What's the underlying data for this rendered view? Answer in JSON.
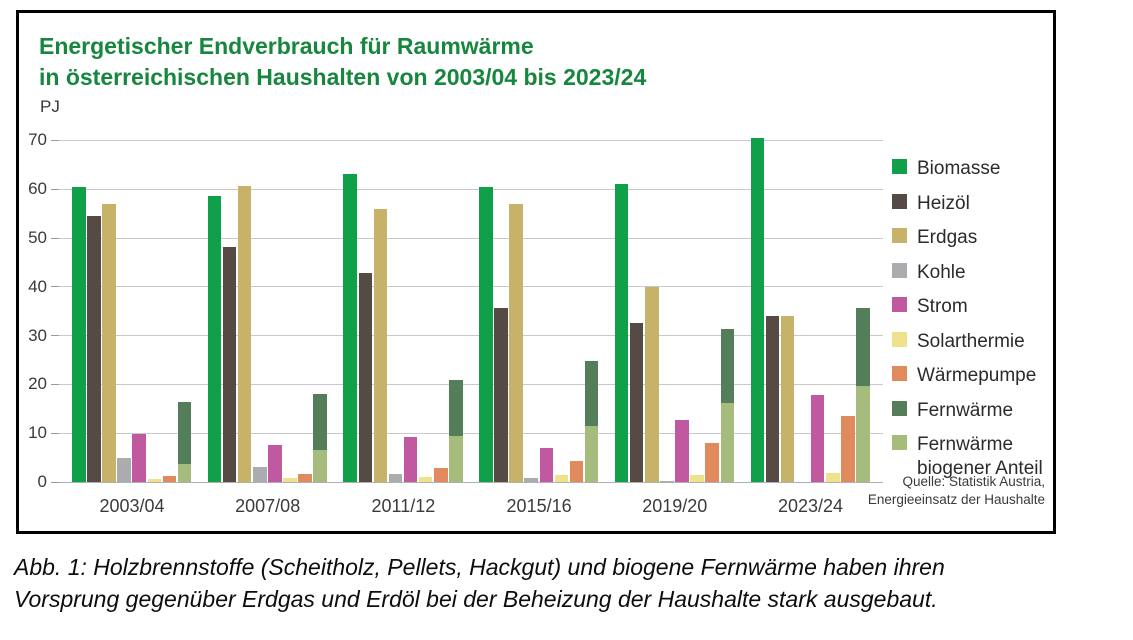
{
  "figure": {
    "title_line1": "Energetischer Endverbrauch für Raumwärme",
    "title_line2": "in österreichischen Haushalten von 2003/04 bis 2023/24",
    "title_color": "#17863e",
    "unit_label": "PJ",
    "source_line1": "Quelle: Statistik Austria,",
    "source_line2": "Energieeinsatz der Haushalte"
  },
  "caption": {
    "line1": "Abb. 1: Holzbrennstoffe (Scheitholz, Pellets, Hackgut) und biogene Fernwärme haben ihren",
    "line2": "Vorsprung gegenüber Erdgas und Erdöl bei der Beheizung der Haushalte stark ausgebaut."
  },
  "chart_data": {
    "type": "bar",
    "title": "Energetischer Endverbrauch für Raumwärme in österreichischen Haushalten von 2003/04 bis 2023/24",
    "ylabel": "PJ",
    "xlabel": "",
    "ylim": [
      0,
      70
    ],
    "ytick_step": 10,
    "grid": true,
    "legend_position": "right",
    "categories": [
      "2003/04",
      "2007/08",
      "2011/12",
      "2015/16",
      "2019/20",
      "2023/24"
    ],
    "series": [
      {
        "name": "Biomasse",
        "color": "#10a04a",
        "values": [
          60.5,
          58.7,
          63.2,
          60.4,
          61.0,
          70.4
        ]
      },
      {
        "name": "Heizöl",
        "color": "#564a44",
        "values": [
          54.5,
          48.1,
          42.8,
          35.6,
          32.5,
          34.0
        ]
      },
      {
        "name": "Erdgas",
        "color": "#c7b269",
        "values": [
          57.0,
          60.7,
          56.0,
          57.0,
          40.0,
          34.0
        ]
      },
      {
        "name": "Kohle",
        "color": "#abacaf",
        "values": [
          5.0,
          3.1,
          1.7,
          0.8,
          0.3,
          0.1
        ]
      },
      {
        "name": "Strom",
        "color": "#c159a0",
        "values": [
          9.8,
          7.6,
          9.2,
          7.0,
          12.8,
          17.9
        ]
      },
      {
        "name": "Solarthermie",
        "color": "#efe28c",
        "values": [
          0.7,
          0.8,
          1.1,
          1.4,
          1.5,
          1.8
        ]
      },
      {
        "name": "Wärmepumpe",
        "color": "#e08a5e",
        "values": [
          1.2,
          1.7,
          2.8,
          4.3,
          8.0,
          13.6
        ]
      },
      {
        "name": "Fernwärme",
        "color": "#547d5a",
        "values": [
          16.3,
          18.0,
          20.8,
          24.8,
          31.4,
          35.7
        ],
        "note": "total, drawn stacked with biogenic share overlaid at bottom"
      },
      {
        "name": "Fernwärme biogener Anteil",
        "color": "#a6bc7d",
        "values": [
          3.6,
          6.6,
          9.5,
          11.4,
          16.1,
          19.7
        ],
        "overlay_of": "Fernwärme",
        "legend_lines": [
          "Fernwärme",
          "biogener Anteil"
        ]
      }
    ]
  }
}
